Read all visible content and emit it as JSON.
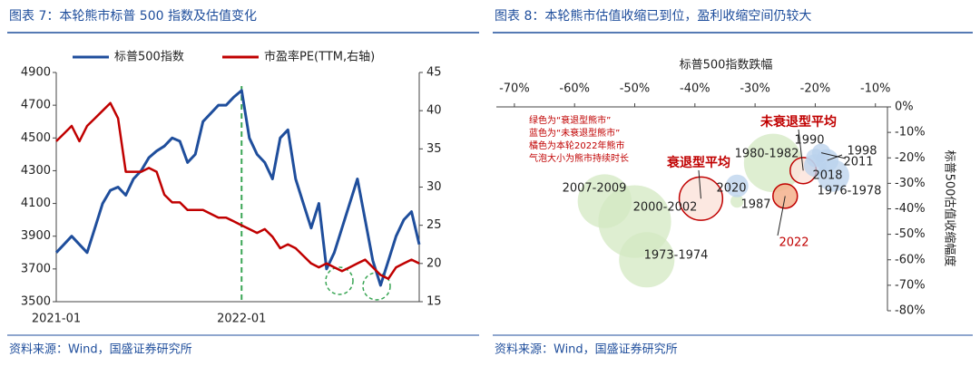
{
  "chart_data": [
    {
      "type": "line",
      "title": "图表 7：本轮熊市标普 500 指数及估值变化",
      "source": "资料来源：Wind，国盛证券研究所",
      "categories": [
        "2021-01",
        null,
        null,
        null,
        null,
        null,
        null,
        null,
        null,
        null,
        null,
        null,
        null,
        null,
        null,
        null,
        null,
        null,
        null,
        null,
        null,
        null,
        null,
        null,
        "2022-01",
        null,
        null,
        null,
        null,
        null,
        null,
        null,
        null,
        null,
        null,
        null,
        null,
        null,
        null,
        null,
        null,
        null,
        null,
        null,
        null,
        null,
        null,
        null
      ],
      "series": [
        {
          "name": "标普500指数",
          "color": "#1f4e9c",
          "values": [
            3800,
            3850,
            3900,
            3850,
            3800,
            3950,
            4100,
            4180,
            4200,
            4150,
            4250,
            4300,
            4380,
            4420,
            4450,
            4500,
            4480,
            4350,
            4400,
            4600,
            4650,
            4700,
            4700,
            4750,
            4790,
            4500,
            4400,
            4350,
            4250,
            4500,
            4550,
            4250,
            4100,
            3950,
            4100,
            3700,
            3800,
            3950,
            4100,
            4250,
            4000,
            3750,
            3600,
            3750,
            3900,
            4000,
            4050,
            3850
          ]
        },
        {
          "name": "市盈率PE(TTM,右轴)",
          "color": "#c00000",
          "axis": "y2",
          "values": [
            36,
            37,
            38,
            36,
            38,
            39,
            40,
            41,
            39,
            32,
            32,
            32,
            32.5,
            32,
            29,
            28,
            28,
            27,
            27,
            27,
            26.5,
            26,
            26,
            25.5,
            25,
            24.5,
            24,
            24.5,
            23.5,
            22,
            22.5,
            22,
            21,
            20,
            19.5,
            20,
            19.5,
            19,
            19.5,
            20,
            20.5,
            19.5,
            18.5,
            18,
            19.5,
            20,
            20.5,
            20
          ]
        }
      ],
      "ylim": [
        3500,
        4900
      ],
      "yticks": [
        3500,
        3700,
        3900,
        4100,
        4300,
        4500,
        4700,
        4900
      ],
      "y2lim": [
        15,
        45
      ],
      "y2ticks": [
        15,
        20,
        25,
        30,
        35,
        40,
        45
      ]
    },
    {
      "type": "scatter",
      "title": "图表 8：本轮熊市估值收缩已到位，盈利收缩空间仍较大",
      "source": "资料来源：Wind，国盛证券研究所",
      "xlabel": "标普500指数跌幅",
      "ylabel": "标普500估值收缩幅度",
      "notes": [
        "绿色为“衰退型熊市”",
        "蓝色为“未衰退型熊市”",
        "橘色为本轮2022年熊市",
        "气泡大小为熊市持续时长"
      ],
      "xlim": [
        -73,
        -8
      ],
      "xticks": [
        {
          "value": -70,
          "label": "-70%"
        },
        {
          "value": -60,
          "label": "-60%"
        },
        {
          "value": -50,
          "label": "-50%"
        },
        {
          "value": -40,
          "label": "-40%"
        },
        {
          "value": -30,
          "label": "-30%"
        },
        {
          "value": -20,
          "label": "-20%"
        },
        {
          "value": -10,
          "label": "-10%"
        }
      ],
      "ylim": [
        -80,
        0
      ],
      "yticks": [
        {
          "value": 0,
          "label": "0%"
        },
        {
          "value": -10,
          "label": "-10%"
        },
        {
          "value": -20,
          "label": "-20%"
        },
        {
          "value": -30,
          "label": "-30%"
        },
        {
          "value": -40,
          "label": "-40%"
        },
        {
          "value": -50,
          "label": "-50%"
        },
        {
          "value": -60,
          "label": "-60%"
        },
        {
          "value": -70,
          "label": "-70%"
        },
        {
          "value": -80,
          "label": "-80%"
        }
      ],
      "points": [
        {
          "label": "2007-2009",
          "x": -55,
          "y": -37,
          "size": 17,
          "color": "#d3e8c2"
        },
        {
          "label": "2000-2002",
          "x": -50,
          "y": -45,
          "size": 31,
          "color": "#d3e8c2"
        },
        {
          "label": "1973-1974",
          "x": -48,
          "y": -60,
          "size": 18,
          "color": "#d3e8c2"
        },
        {
          "label": "衰退型平均",
          "x": -39,
          "y": -36,
          "size": 11,
          "color": "#fbe4dc",
          "edgecolor": "#c00000"
        },
        {
          "label": "2020",
          "x": -33,
          "y": -37,
          "size": 1,
          "color": "#d3e8c2"
        },
        {
          "label": "1987",
          "x": -33,
          "y": -31,
          "size": 3,
          "color": "#b9d1ec"
        },
        {
          "label": "1980-1982",
          "x": -27,
          "y": -22,
          "size": 20,
          "color": "#d3e8c2"
        },
        {
          "label": "2022",
          "x": -25,
          "y": -35,
          "size": 3.5,
          "color": "#f4b08c",
          "edgecolor": "#c00000"
        },
        {
          "label": "未衰退型平均",
          "x": -22,
          "y": -25,
          "size": 4,
          "color": "#fbe4dc",
          "edgecolor": "#c00000"
        },
        {
          "label": "1990",
          "x": -20,
          "y": -20,
          "size": 2,
          "color": "#b9d1ec"
        },
        {
          "label": "1998",
          "x": -19,
          "y": -18,
          "size": 2,
          "color": "#b9d1ec"
        },
        {
          "label": "2011",
          "x": -18,
          "y": -21,
          "size": 3,
          "color": "#b9d1ec"
        },
        {
          "label": "2018",
          "x": -20,
          "y": -23,
          "size": 3,
          "color": "#b9d1ec"
        },
        {
          "label": "1976-1978",
          "x": -17,
          "y": -27,
          "size": 6,
          "color": "#b9d1ec"
        }
      ]
    }
  ]
}
